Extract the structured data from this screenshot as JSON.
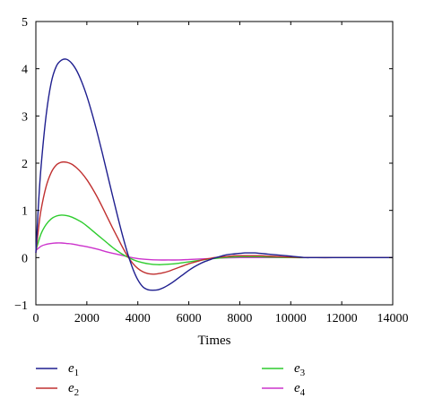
{
  "chart_data": {
    "type": "line",
    "title": "",
    "xlabel": "Times",
    "ylabel": "",
    "xlim": [
      0,
      14000
    ],
    "ylim": [
      -1,
      5
    ],
    "xticks": [
      0,
      2000,
      4000,
      6000,
      8000,
      10000,
      12000,
      14000
    ],
    "yticks": [
      -1,
      0,
      1,
      2,
      3,
      4,
      5
    ],
    "grid": false,
    "legend_position": "bottom",
    "series": [
      {
        "name": "e1",
        "base": "e",
        "sub": "1",
        "color": "#1f1f8f",
        "x": [
          0,
          100,
          200,
          400,
          600,
          800,
          1000,
          1200,
          1400,
          1600,
          1800,
          2000,
          2200,
          2400,
          2600,
          2800,
          3000,
          3200,
          3400,
          3600,
          3800,
          4000,
          4200,
          4400,
          4600,
          4800,
          5000,
          5200,
          5400,
          5600,
          5800,
          6000,
          6200,
          6400,
          6600,
          6800,
          7000,
          7200,
          7400,
          7600,
          7800,
          8000,
          8200,
          8400,
          8600,
          8800,
          9000,
          9200,
          9400,
          9600,
          9800,
          10000,
          10200,
          10400,
          10600,
          10800,
          11000,
          12000,
          13000,
          14000
        ],
        "y": [
          0.1,
          1.1,
          1.9,
          3.0,
          3.7,
          4.05,
          4.18,
          4.2,
          4.12,
          3.96,
          3.72,
          3.42,
          3.06,
          2.66,
          2.23,
          1.78,
          1.33,
          0.89,
          0.47,
          0.09,
          -0.23,
          -0.47,
          -0.62,
          -0.68,
          -0.69,
          -0.68,
          -0.64,
          -0.58,
          -0.51,
          -0.43,
          -0.35,
          -0.27,
          -0.2,
          -0.14,
          -0.09,
          -0.05,
          -0.01,
          0.02,
          0.05,
          0.07,
          0.08,
          0.09,
          0.1,
          0.1,
          0.1,
          0.09,
          0.08,
          0.07,
          0.06,
          0.05,
          0.04,
          0.03,
          0.02,
          0.01,
          0.0,
          0.0,
          0.0,
          0.0,
          0.0,
          0.0
        ]
      },
      {
        "name": "e2",
        "base": "e",
        "sub": "2",
        "color": "#c03030",
        "x": [
          0,
          100,
          200,
          400,
          600,
          800,
          1000,
          1200,
          1400,
          1600,
          1800,
          2000,
          2200,
          2400,
          2600,
          2800,
          3000,
          3200,
          3400,
          3600,
          3800,
          4000,
          4200,
          4400,
          4600,
          4800,
          5000,
          5200,
          5400,
          5600,
          5800,
          6000,
          6200,
          6400,
          6600,
          6800,
          7000,
          7200,
          7400,
          7600,
          7800,
          8000,
          8400,
          8800,
          9200,
          9600,
          10000,
          11000,
          12000,
          13000,
          14000
        ],
        "y": [
          0.1,
          0.6,
          1.0,
          1.5,
          1.8,
          1.96,
          2.02,
          2.02,
          1.98,
          1.9,
          1.79,
          1.65,
          1.48,
          1.29,
          1.08,
          0.86,
          0.64,
          0.43,
          0.22,
          0.03,
          -0.12,
          -0.23,
          -0.3,
          -0.34,
          -0.35,
          -0.34,
          -0.32,
          -0.29,
          -0.25,
          -0.21,
          -0.17,
          -0.13,
          -0.1,
          -0.07,
          -0.04,
          -0.02,
          0.0,
          0.01,
          0.02,
          0.03,
          0.04,
          0.04,
          0.04,
          0.04,
          0.03,
          0.02,
          0.01,
          0.0,
          0.0,
          0.0,
          0.0
        ]
      },
      {
        "name": "e3",
        "base": "e",
        "sub": "3",
        "color": "#2ecc2e",
        "x": [
          0,
          200,
          400,
          600,
          800,
          1000,
          1200,
          1400,
          1600,
          1800,
          2000,
          2200,
          2400,
          2600,
          2800,
          3000,
          3200,
          3400,
          3600,
          3800,
          4000,
          4400,
          4800,
          5200,
          5600,
          6000,
          6400,
          6800,
          7200,
          7600,
          8000,
          8400,
          8800,
          9200,
          10000,
          11000,
          12000,
          13000,
          14000
        ],
        "y": [
          0.15,
          0.5,
          0.7,
          0.82,
          0.88,
          0.9,
          0.89,
          0.86,
          0.81,
          0.75,
          0.67,
          0.58,
          0.49,
          0.4,
          0.31,
          0.22,
          0.14,
          0.07,
          0.01,
          -0.04,
          -0.08,
          -0.13,
          -0.15,
          -0.14,
          -0.12,
          -0.09,
          -0.06,
          -0.03,
          -0.01,
          0.01,
          0.02,
          0.02,
          0.02,
          0.01,
          0.0,
          0.0,
          0.0,
          0.0,
          0.0
        ]
      },
      {
        "name": "e4",
        "base": "e",
        "sub": "4",
        "color": "#cc33cc",
        "x": [
          0,
          200,
          400,
          600,
          800,
          1000,
          1200,
          1400,
          1600,
          1800,
          2000,
          2400,
          2800,
          3200,
          3600,
          4000,
          4400,
          4800,
          5200,
          5600,
          6000,
          6400,
          6800,
          7200,
          8000,
          9000,
          10000,
          12000,
          14000
        ],
        "y": [
          0.15,
          0.24,
          0.28,
          0.3,
          0.31,
          0.31,
          0.3,
          0.29,
          0.27,
          0.25,
          0.23,
          0.18,
          0.12,
          0.07,
          0.02,
          -0.02,
          -0.04,
          -0.05,
          -0.05,
          -0.05,
          -0.04,
          -0.03,
          -0.02,
          -0.01,
          0.0,
          0.0,
          0.0,
          0.0,
          0.0
        ]
      }
    ]
  }
}
